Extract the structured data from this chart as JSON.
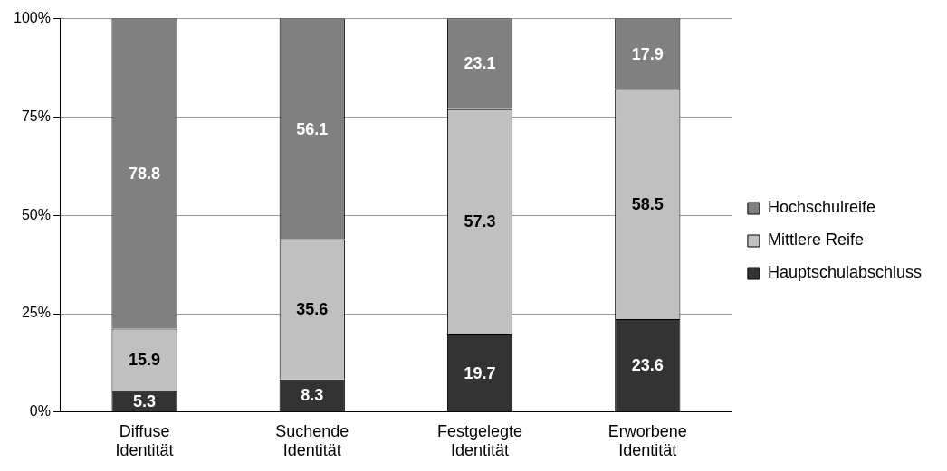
{
  "chart_data": {
    "type": "bar",
    "stacked": true,
    "categories": [
      "Diffuse Identität",
      "Suchende Identität",
      "Festgelegte Identität",
      "Erworbene Identität"
    ],
    "series": [
      {
        "name": "Hauptschulabschluss",
        "color": "#333333",
        "values": [
          5.3,
          8.3,
          19.7,
          23.6
        ]
      },
      {
        "name": "Mittlere Reife",
        "color": "#c0c0c0",
        "values": [
          15.9,
          35.6,
          57.3,
          58.5
        ]
      },
      {
        "name": "Hochschulreife",
        "color": "#808080",
        "values": [
          78.8,
          56.1,
          23.1,
          17.9
        ]
      }
    ],
    "ylim": [
      0,
      100
    ],
    "yticks": [
      {
        "value": 0,
        "label": "0%"
      },
      {
        "value": 25,
        "label": "25%"
      },
      {
        "value": 50,
        "label": "50%"
      },
      {
        "value": 75,
        "label": "75%"
      },
      {
        "value": 100,
        "label": "100%"
      }
    ],
    "grid": "y",
    "legend": "right",
    "data_labels": true
  }
}
